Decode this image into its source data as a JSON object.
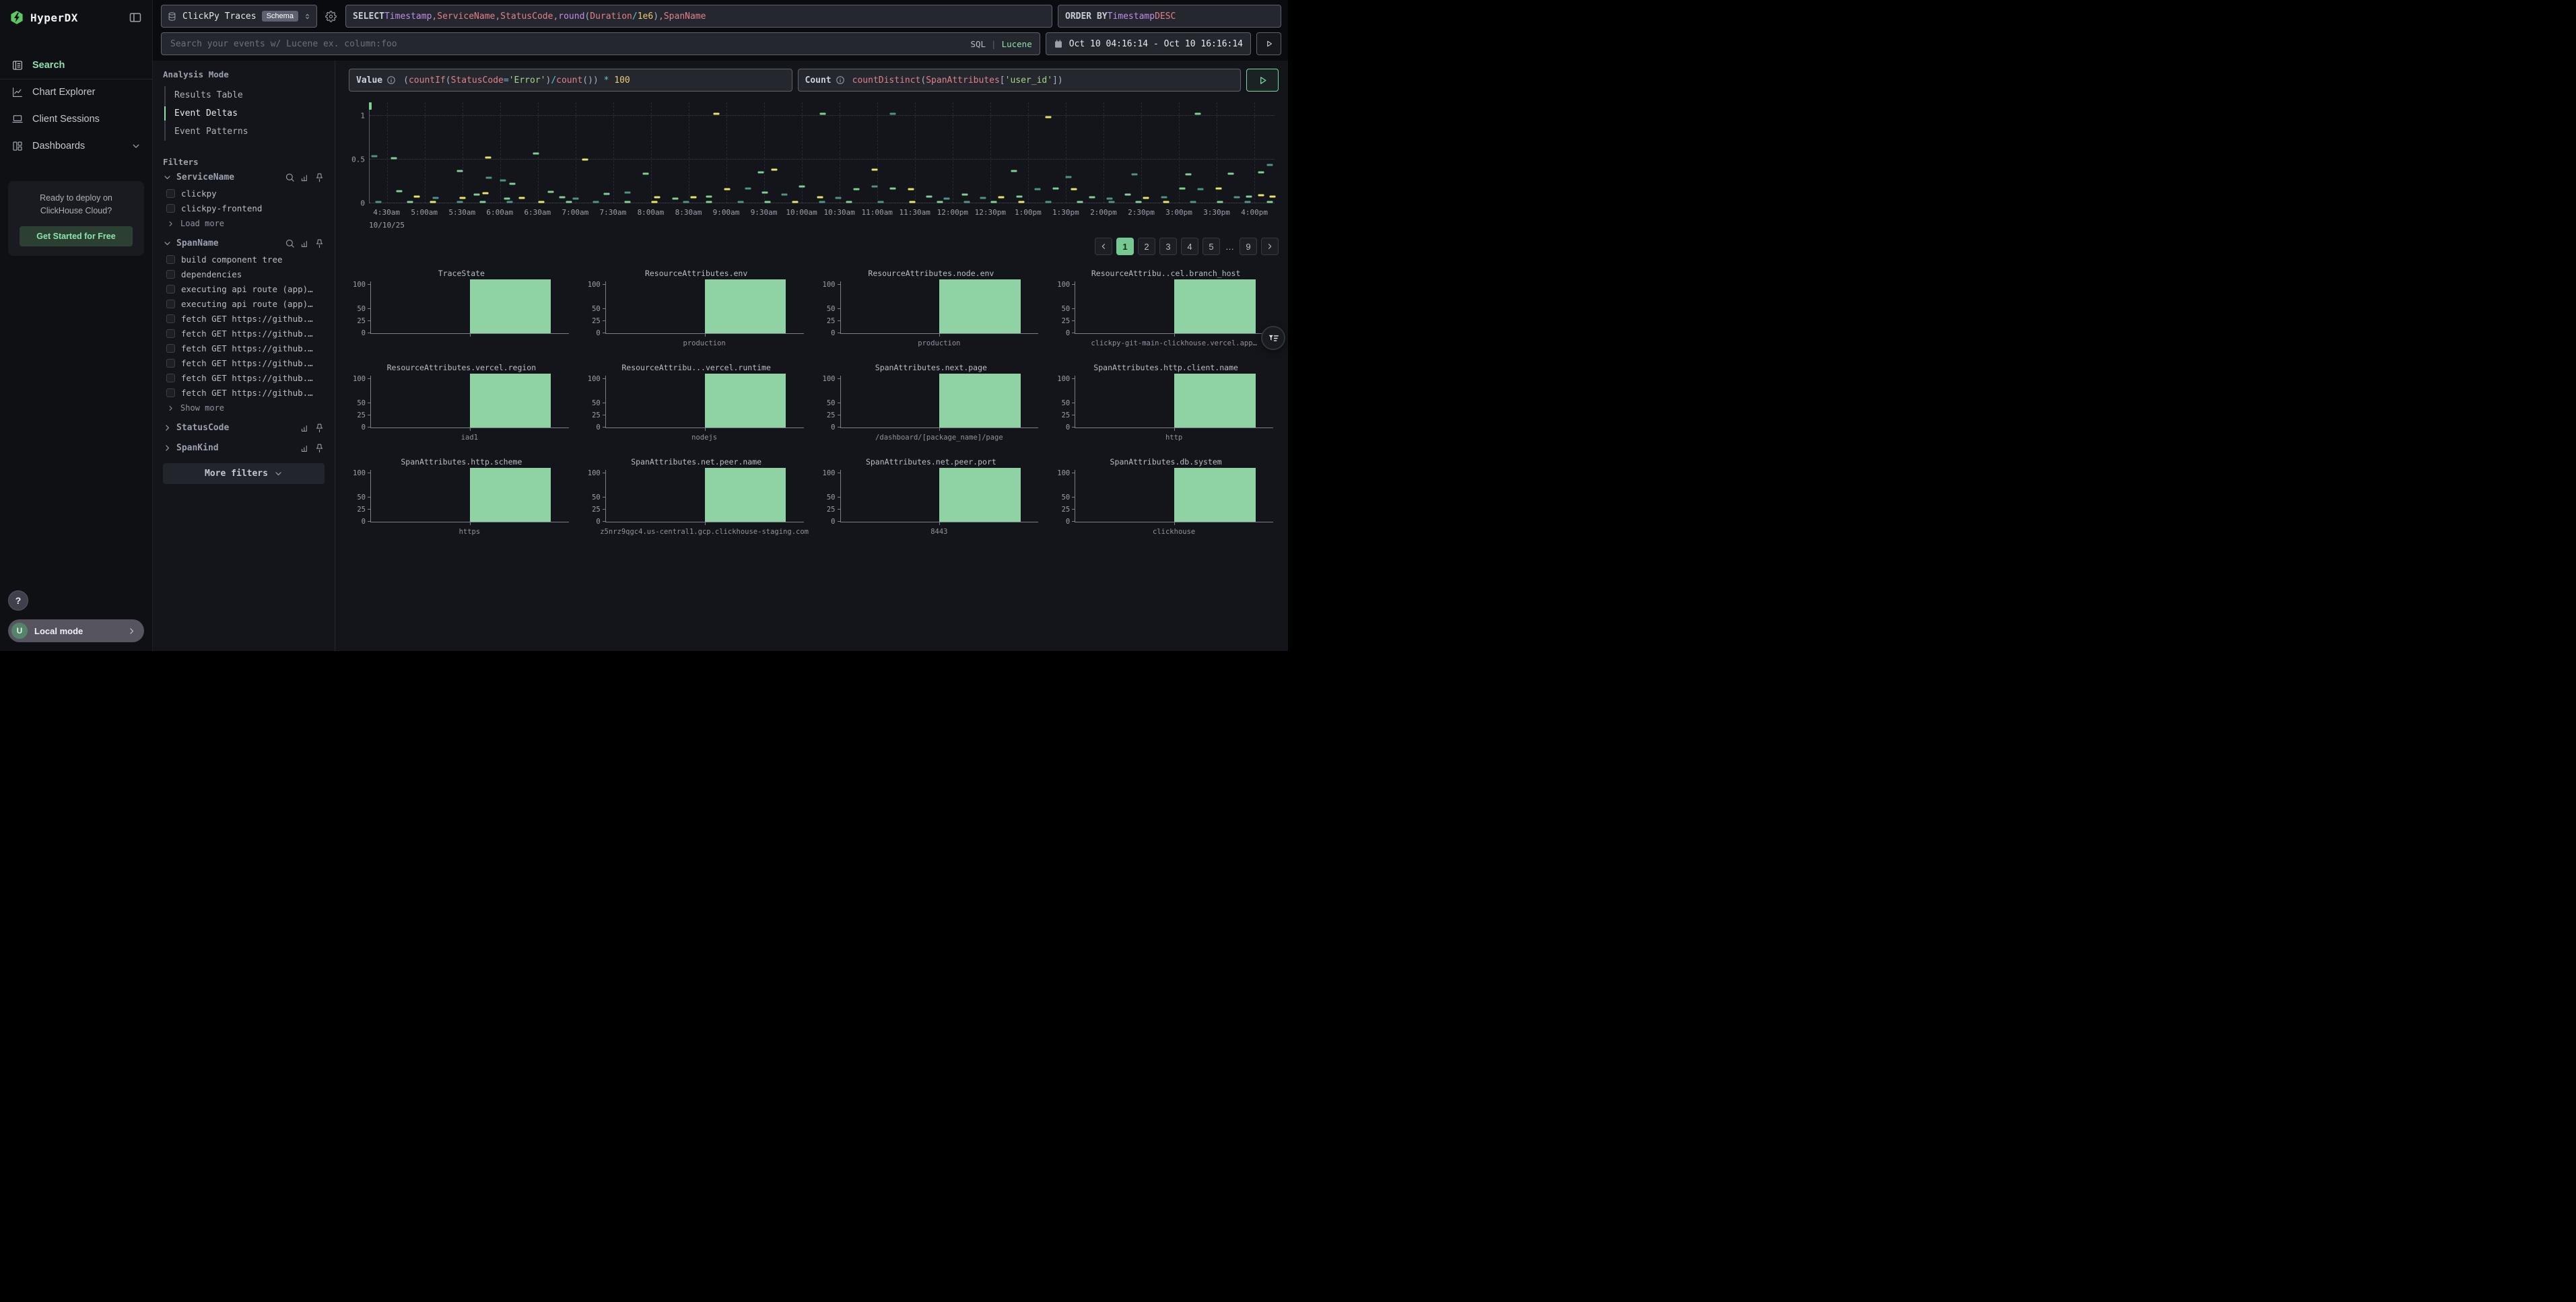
{
  "app": {
    "title": "HyperDX"
  },
  "sidebar": {
    "logo_text": "HyperDX",
    "nav": [
      {
        "label": "Search",
        "icon": "search-doc",
        "active": true
      },
      {
        "label": "Chart Explorer",
        "icon": "chart-line",
        "active": false
      },
      {
        "label": "Client Sessions",
        "icon": "laptop",
        "active": false
      },
      {
        "label": "Dashboards",
        "icon": "grid",
        "active": false,
        "chevron": true
      }
    ],
    "promo": {
      "line1": "Ready to deploy on",
      "line2": "ClickHouse Cloud?",
      "button": "Get Started for Free"
    },
    "help_label": "?",
    "user": {
      "initial": "U",
      "label": "Local mode"
    }
  },
  "topbar": {
    "source": {
      "name": "ClickPy Traces",
      "badge": "Schema"
    },
    "select_query": [
      {
        "t": "SELECT ",
        "c": "kw"
      },
      {
        "t": "Timestamp",
        "c": "fld"
      },
      {
        "t": ", ",
        "c": "id"
      },
      {
        "t": "ServiceName",
        "c": "id"
      },
      {
        "t": ", ",
        "c": "id"
      },
      {
        "t": "StatusCode",
        "c": "id"
      },
      {
        "t": ", ",
        "c": "id"
      },
      {
        "t": "round",
        "c": "fld"
      },
      {
        "t": "(",
        "c": "p"
      },
      {
        "t": "Duration",
        "c": "id"
      },
      {
        "t": " ",
        "c": "p"
      },
      {
        "t": "/",
        "c": "op"
      },
      {
        "t": " ",
        "c": "p"
      },
      {
        "t": "1e6",
        "c": "num"
      },
      {
        "t": ")",
        "c": "p"
      },
      {
        "t": ", ",
        "c": "id"
      },
      {
        "t": "SpanName",
        "c": "id"
      }
    ],
    "order_by": [
      {
        "t": "ORDER BY ",
        "c": "kw"
      },
      {
        "t": "Timestamp",
        "c": "fld"
      },
      {
        "t": " ",
        "c": "p"
      },
      {
        "t": "DESC",
        "c": "id"
      }
    ],
    "search": {
      "placeholder": "Search your events w/ Lucene ex. column:foo",
      "sql_label": "SQL",
      "divider": "|",
      "lucene_label": "Lucene"
    },
    "date_range": "Oct 10 04:16:14 - Oct 10 16:16:14"
  },
  "analysis_mode": {
    "label": "Analysis Mode",
    "items": [
      {
        "label": "Results Table",
        "active": false
      },
      {
        "label": "Event Deltas",
        "active": true
      },
      {
        "label": "Event Patterns",
        "active": false
      }
    ]
  },
  "filters": {
    "label": "Filters",
    "groups": [
      {
        "name": "ServiceName",
        "expanded": true,
        "search": true,
        "items": [
          "clickpy",
          "clickpy-frontend"
        ],
        "more": "Load more"
      },
      {
        "name": "SpanName",
        "expanded": true,
        "search": true,
        "items": [
          "build component tree",
          "dependencies",
          "executing api route (app)…",
          "executing api route (app)…",
          "fetch GET https://github.…",
          "fetch GET https://github.…",
          "fetch GET https://github.…",
          "fetch GET https://github.…",
          "fetch GET https://github.…",
          "fetch GET https://github.…"
        ],
        "more": "Show more"
      },
      {
        "name": "StatusCode",
        "expanded": false,
        "search": false,
        "items": [],
        "more": null
      },
      {
        "name": "SpanKind",
        "expanded": false,
        "search": false,
        "items": [],
        "more": null
      }
    ],
    "more_filters_label": "More filters"
  },
  "expressions": {
    "value": {
      "label": "Value",
      "segments": [
        {
          "t": "(",
          "c": "p"
        },
        {
          "t": "countIf",
          "c": "id"
        },
        {
          "t": "(",
          "c": "p"
        },
        {
          "t": "StatusCode",
          "c": "id"
        },
        {
          "t": "=",
          "c": "op"
        },
        {
          "t": "'Error'",
          "c": "str"
        },
        {
          "t": ")",
          "c": "p"
        },
        {
          "t": "/",
          "c": "op"
        },
        {
          "t": "count",
          "c": "id"
        },
        {
          "t": "())",
          "c": "p"
        },
        {
          "t": " ",
          "c": "p"
        },
        {
          "t": "*",
          "c": "op"
        },
        {
          "t": " ",
          "c": "p"
        },
        {
          "t": "100",
          "c": "num"
        }
      ]
    },
    "count": {
      "label": "Count",
      "segments": [
        {
          "t": "countDistinct",
          "c": "id"
        },
        {
          "t": "(",
          "c": "p"
        },
        {
          "t": "SpanAttributes",
          "c": "id"
        },
        {
          "t": "[",
          "c": "p"
        },
        {
          "t": "'user_id'",
          "c": "str"
        },
        {
          "t": "]",
          "c": "p"
        },
        {
          "t": ")",
          "c": "p"
        }
      ]
    }
  },
  "pagination": {
    "prev": "‹",
    "next": "›",
    "pages": [
      "1",
      "2",
      "3",
      "4",
      "5",
      "…",
      "9"
    ],
    "active": "1"
  },
  "chart_data": [
    {
      "type": "scatter",
      "title": "Event Deltas",
      "marker": "horizontal-dash",
      "date_label": "10/10/25",
      "x_ticks": [
        "4:30am",
        "5:00am",
        "5:30am",
        "6:00am",
        "6:30am",
        "7:00am",
        "7:30am",
        "8:00am",
        "8:30am",
        "9:00am",
        "9:30am",
        "10:00am",
        "10:30am",
        "11:00am",
        "11:30am",
        "12:00pm",
        "12:30pm",
        "1:00pm",
        "1:30pm",
        "2:00pm",
        "2:30pm",
        "3:00pm",
        "3:30pm",
        "4:00pm"
      ],
      "x_first_tick_offset_min": 14,
      "x_tick_interval_min": 30,
      "x_span_min": 720,
      "y_ticks": [
        0,
        0.5,
        1
      ],
      "ylim": [
        0,
        1.15
      ],
      "marker_colors": {
        "g": "#7fcf8d",
        "t": "#4f9287",
        "y": "#e9e564"
      },
      "points": [
        [
          0.001,
          1.08,
          "g",
          "tall"
        ],
        [
          0.383,
          1.02,
          "y"
        ],
        [
          0.501,
          1.02,
          "g"
        ],
        [
          0.578,
          1.02,
          "t"
        ],
        [
          0.75,
          0.985,
          "y"
        ],
        [
          0.915,
          1.02,
          "g"
        ],
        [
          0.005,
          0.535,
          "t"
        ],
        [
          0.027,
          0.515,
          "g"
        ],
        [
          0.131,
          0.52,
          "y"
        ],
        [
          0.184,
          0.57,
          "g"
        ],
        [
          0.238,
          0.5,
          "y"
        ],
        [
          0.1,
          0.37,
          "g"
        ],
        [
          0.132,
          0.29,
          "t"
        ],
        [
          0.147,
          0.26,
          "t"
        ],
        [
          0.158,
          0.22,
          "g"
        ],
        [
          0.305,
          0.34,
          "g"
        ],
        [
          0.432,
          0.35,
          "g"
        ],
        [
          0.447,
          0.38,
          "y"
        ],
        [
          0.558,
          0.38,
          "y"
        ],
        [
          0.712,
          0.37,
          "g"
        ],
        [
          0.772,
          0.3,
          "t"
        ],
        [
          0.845,
          0.33,
          "t"
        ],
        [
          0.905,
          0.33,
          "g"
        ],
        [
          0.952,
          0.34,
          "g"
        ],
        [
          0.995,
          0.44,
          "t"
        ],
        [
          0.985,
          0.35,
          "g"
        ],
        [
          0.033,
          0.14,
          "g"
        ],
        [
          0.052,
          0.08,
          "y"
        ],
        [
          0.073,
          0.062,
          "t"
        ],
        [
          0.103,
          0.062,
          "y"
        ],
        [
          0.118,
          0.1,
          "g"
        ],
        [
          0.128,
          0.115,
          "y"
        ],
        [
          0.152,
          0.055,
          "g"
        ],
        [
          0.168,
          0.065,
          "y"
        ],
        [
          0.2,
          0.13,
          "g"
        ],
        [
          0.213,
          0.068,
          "g"
        ],
        [
          0.228,
          0.055,
          "t"
        ],
        [
          0.262,
          0.11,
          "g"
        ],
        [
          0.285,
          0.12,
          "t"
        ],
        [
          0.318,
          0.068,
          "y"
        ],
        [
          0.338,
          0.055,
          "g"
        ],
        [
          0.358,
          0.068,
          "y"
        ],
        [
          0.375,
          0.08,
          "g"
        ],
        [
          0.395,
          0.16,
          "y"
        ],
        [
          0.418,
          0.17,
          "t"
        ],
        [
          0.437,
          0.12,
          "g"
        ],
        [
          0.458,
          0.1,
          "t"
        ],
        [
          0.478,
          0.19,
          "g"
        ],
        [
          0.498,
          0.068,
          "y"
        ],
        [
          0.518,
          0.06,
          "t"
        ],
        [
          0.538,
          0.16,
          "g"
        ],
        [
          0.558,
          0.19,
          "t"
        ],
        [
          0.578,
          0.17,
          "g"
        ],
        [
          0.598,
          0.16,
          "y"
        ],
        [
          0.618,
          0.08,
          "g"
        ],
        [
          0.638,
          0.055,
          "t"
        ],
        [
          0.658,
          0.1,
          "g"
        ],
        [
          0.678,
          0.062,
          "t"
        ],
        [
          0.698,
          0.068,
          "y"
        ],
        [
          0.718,
          0.075,
          "g"
        ],
        [
          0.738,
          0.16,
          "t"
        ],
        [
          0.758,
          0.17,
          "g"
        ],
        [
          0.778,
          0.16,
          "y"
        ],
        [
          0.798,
          0.068,
          "g"
        ],
        [
          0.818,
          0.055,
          "t"
        ],
        [
          0.838,
          0.1,
          "g"
        ],
        [
          0.858,
          0.065,
          "y"
        ],
        [
          0.878,
          0.07,
          "t"
        ],
        [
          0.898,
          0.17,
          "g"
        ],
        [
          0.918,
          0.16,
          "t"
        ],
        [
          0.938,
          0.17,
          "y"
        ],
        [
          0.958,
          0.07,
          "t"
        ],
        [
          0.972,
          0.08,
          "g"
        ],
        [
          0.985,
          0.09,
          "y"
        ],
        [
          0.998,
          0.08,
          "y"
        ],
        [
          0.01,
          0.012,
          "t"
        ],
        [
          0.045,
          0.012,
          "g"
        ],
        [
          0.07,
          0.012,
          "y"
        ],
        [
          0.1,
          0.012,
          "t"
        ],
        [
          0.125,
          0.012,
          "g"
        ],
        [
          0.155,
          0.012,
          "t"
        ],
        [
          0.19,
          0.012,
          "y"
        ],
        [
          0.22,
          0.012,
          "g"
        ],
        [
          0.25,
          0.012,
          "t"
        ],
        [
          0.285,
          0.012,
          "g"
        ],
        [
          0.315,
          0.012,
          "y"
        ],
        [
          0.35,
          0.012,
          "t"
        ],
        [
          0.375,
          0.012,
          "g"
        ],
        [
          0.41,
          0.012,
          "t"
        ],
        [
          0.44,
          0.012,
          "g"
        ],
        [
          0.47,
          0.012,
          "y"
        ],
        [
          0.5,
          0.012,
          "t"
        ],
        [
          0.53,
          0.012,
          "g"
        ],
        [
          0.565,
          0.012,
          "t"
        ],
        [
          0.6,
          0.012,
          "y"
        ],
        [
          0.63,
          0.012,
          "g"
        ],
        [
          0.66,
          0.012,
          "t"
        ],
        [
          0.69,
          0.012,
          "g"
        ],
        [
          0.72,
          0.012,
          "y"
        ],
        [
          0.75,
          0.012,
          "t"
        ],
        [
          0.785,
          0.012,
          "g"
        ],
        [
          0.82,
          0.012,
          "t"
        ],
        [
          0.85,
          0.012,
          "g"
        ],
        [
          0.88,
          0.012,
          "y"
        ],
        [
          0.91,
          0.012,
          "t"
        ],
        [
          0.94,
          0.012,
          "g"
        ],
        [
          0.97,
          0.012,
          "t"
        ],
        [
          0.995,
          0.012,
          "g"
        ]
      ]
    },
    {
      "type": "bar",
      "title": "TraceState",
      "categories": [
        ""
      ],
      "values": [
        100
      ],
      "y_ticks": [
        0,
        25,
        50,
        100
      ],
      "ylim": [
        0,
        107
      ],
      "bar_color": "#8fd3a4"
    },
    {
      "type": "bar",
      "title": "ResourceAttributes.env",
      "categories": [
        "production"
      ],
      "values": [
        100
      ],
      "y_ticks": [
        0,
        25,
        50,
        100
      ],
      "ylim": [
        0,
        107
      ],
      "bar_color": "#8fd3a4"
    },
    {
      "type": "bar",
      "title": "ResourceAttributes.node.env",
      "categories": [
        "production"
      ],
      "values": [
        100
      ],
      "y_ticks": [
        0,
        25,
        50,
        100
      ],
      "ylim": [
        0,
        107
      ],
      "bar_color": "#8fd3a4"
    },
    {
      "type": "bar",
      "title": "ResourceAttribu..cel.branch_host",
      "categories": [
        "clickpy-git-main-clickhouse.vercel.app…"
      ],
      "values": [
        100
      ],
      "y_ticks": [
        0,
        25,
        50,
        100
      ],
      "ylim": [
        0,
        107
      ],
      "bar_color": "#8fd3a4"
    },
    {
      "type": "bar",
      "title": "ResourceAttributes.vercel.region",
      "categories": [
        "iad1"
      ],
      "values": [
        100
      ],
      "y_ticks": [
        0,
        25,
        50,
        100
      ],
      "ylim": [
        0,
        107
      ],
      "bar_color": "#8fd3a4"
    },
    {
      "type": "bar",
      "title": "ResourceAttribu...vercel.runtime",
      "categories": [
        "nodejs"
      ],
      "values": [
        100
      ],
      "y_ticks": [
        0,
        25,
        50,
        100
      ],
      "ylim": [
        0,
        107
      ],
      "bar_color": "#8fd3a4"
    },
    {
      "type": "bar",
      "title": "SpanAttributes.next.page",
      "categories": [
        "/dashboard/[package_name]/page"
      ],
      "values": [
        100
      ],
      "y_ticks": [
        0,
        25,
        50,
        100
      ],
      "ylim": [
        0,
        107
      ],
      "bar_color": "#8fd3a4"
    },
    {
      "type": "bar",
      "title": "SpanAttributes.http.client.name",
      "categories": [
        "http"
      ],
      "values": [
        100
      ],
      "y_ticks": [
        0,
        25,
        50,
        100
      ],
      "ylim": [
        0,
        107
      ],
      "bar_color": "#8fd3a4"
    },
    {
      "type": "bar",
      "title": "SpanAttributes.http.scheme",
      "categories": [
        "https"
      ],
      "values": [
        100
      ],
      "y_ticks": [
        0,
        25,
        50,
        100
      ],
      "ylim": [
        0,
        107
      ],
      "bar_color": "#8fd3a4"
    },
    {
      "type": "bar",
      "title": "SpanAttributes.net.peer.name",
      "categories": [
        "z5nrz9qgc4.us-central1.gcp.clickhouse-staging.com"
      ],
      "values": [
        100
      ],
      "y_ticks": [
        0,
        25,
        50,
        100
      ],
      "ylim": [
        0,
        107
      ],
      "bar_color": "#8fd3a4"
    },
    {
      "type": "bar",
      "title": "SpanAttributes.net.peer.port",
      "categories": [
        "8443"
      ],
      "values": [
        100
      ],
      "y_ticks": [
        0,
        25,
        50,
        100
      ],
      "ylim": [
        0,
        107
      ],
      "bar_color": "#8fd3a4"
    },
    {
      "type": "bar",
      "title": "SpanAttributes.db.system",
      "categories": [
        "clickhouse"
      ],
      "values": [
        100
      ],
      "y_ticks": [
        0,
        25,
        50,
        100
      ],
      "ylim": [
        0,
        107
      ],
      "bar_color": "#8fd3a4"
    }
  ]
}
